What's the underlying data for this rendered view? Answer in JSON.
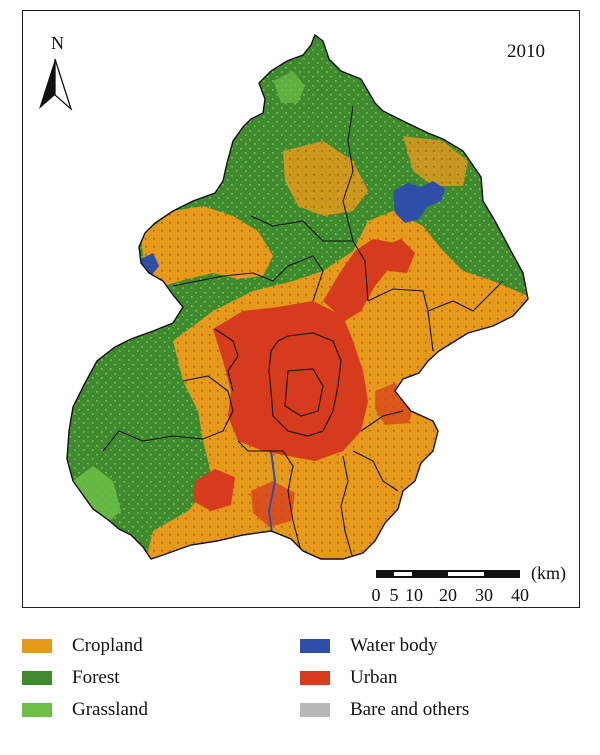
{
  "map": {
    "year": "2010",
    "north_label": "N",
    "scale_bar": {
      "unit": "(km)",
      "ticks": [
        "0",
        "5",
        "10",
        "20",
        "30",
        "40"
      ]
    }
  },
  "legend": {
    "items": [
      {
        "label": "Cropland",
        "color": "#e59a1c"
      },
      {
        "label": "Forest",
        "color": "#3f8a2e"
      },
      {
        "label": "Grassland",
        "color": "#6cbf47"
      },
      {
        "label": "Water body",
        "color": "#2e4ea8"
      },
      {
        "label": "Urban",
        "color": "#d53b1c"
      },
      {
        "label": "Bare and others",
        "color": "#b8b8b8"
      }
    ]
  }
}
